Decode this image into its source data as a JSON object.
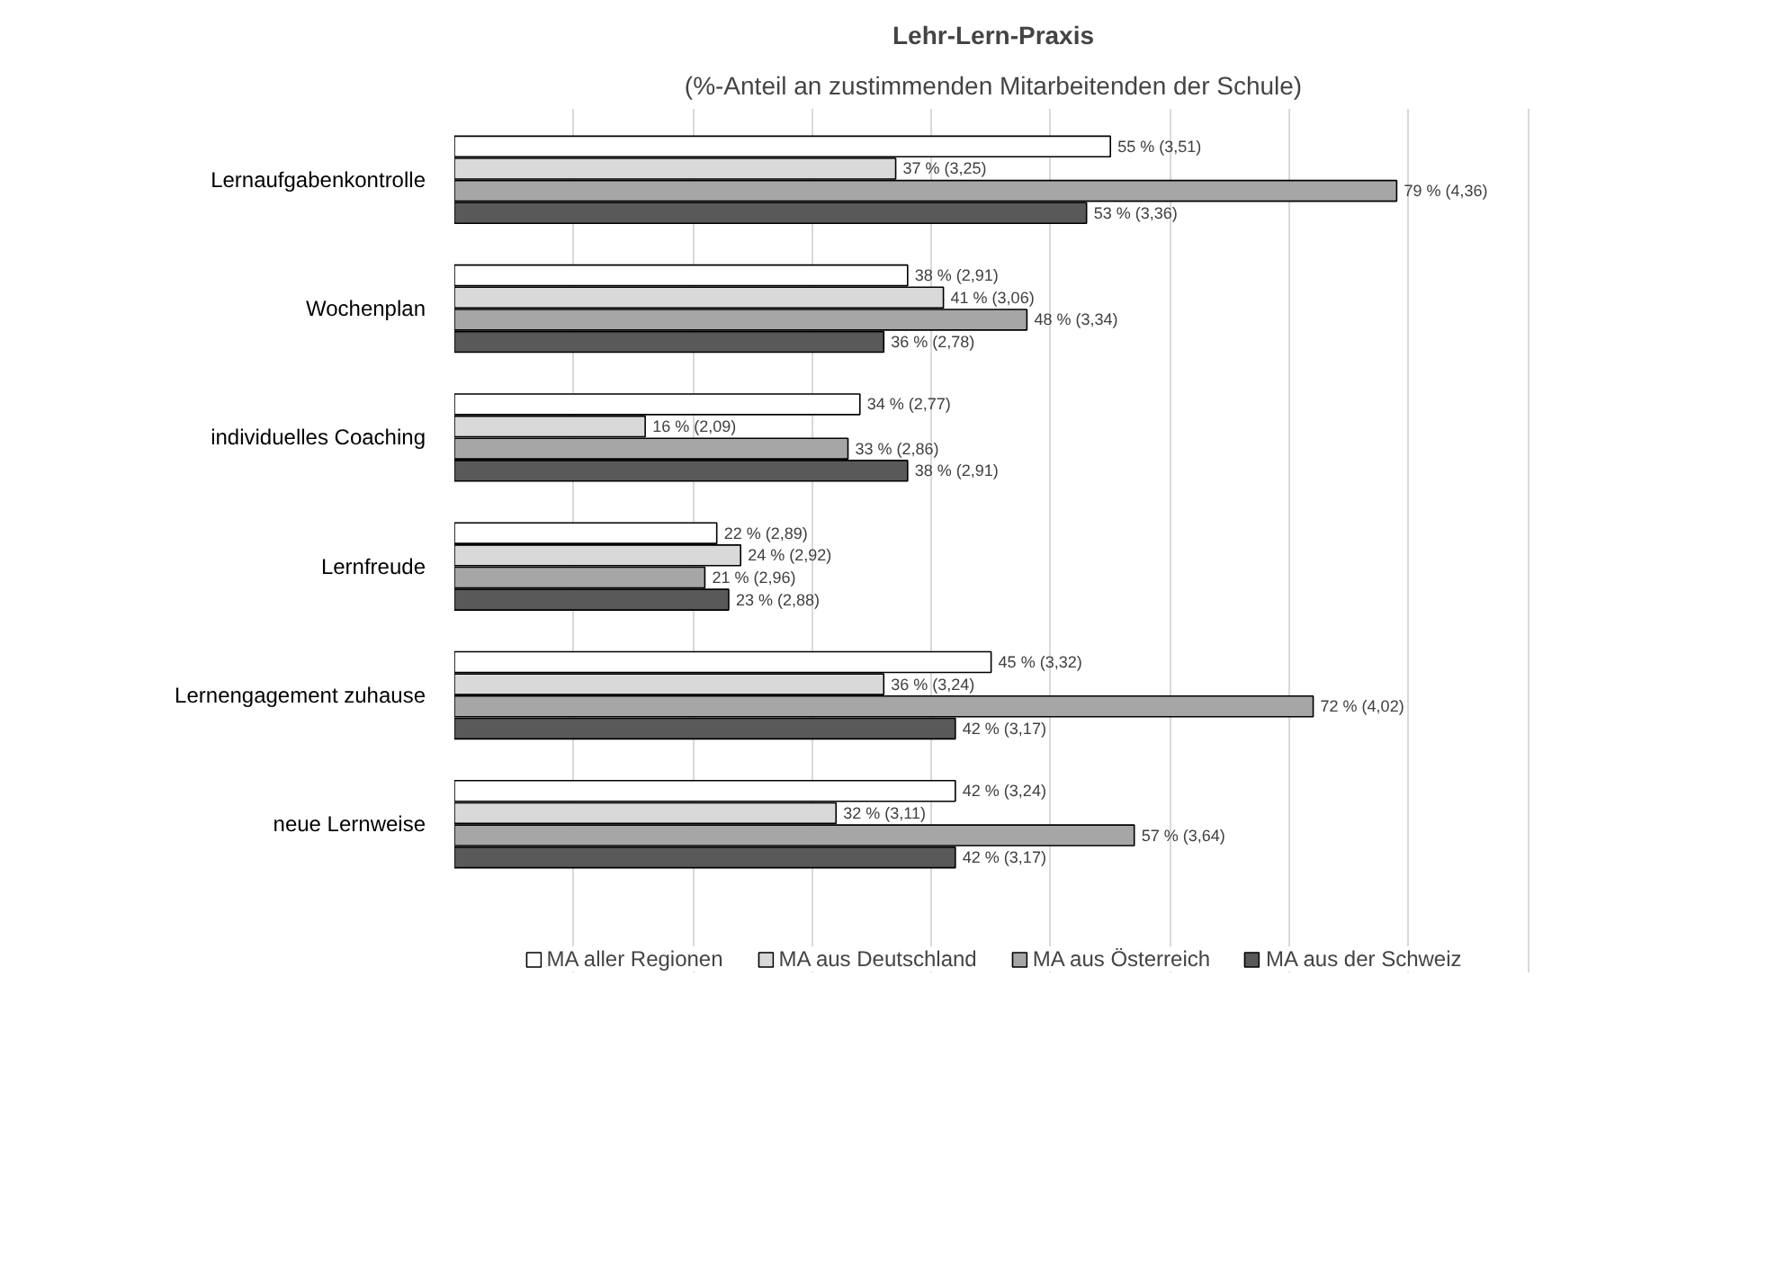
{
  "chart_data": {
    "type": "bar",
    "orientation": "horizontal",
    "title": "Lehr-Lern-Praxis",
    "subtitle": "(%-Anteil an zustimmenden Mitarbeitenden der Schule)",
    "categories": [
      "Lernaufgabenkontrolle",
      "Wochenplan",
      "individuelles Coaching",
      "Lernfreude",
      "Lernengagement zuhause",
      "neue Lernweise"
    ],
    "series": [
      {
        "name": "MA aller Regionen",
        "color": "#ffffff",
        "values": [
          55,
          38,
          34,
          22,
          45,
          42
        ],
        "value_labels": [
          "55 % (3,51)",
          "38 % (2,91)",
          "34 % (2,77)",
          "22 % (2,89)",
          "45 % (3,32)",
          "42 % (3,24)"
        ]
      },
      {
        "name": "MA aus Deutschland",
        "color": "#d9d9d9",
        "values": [
          37,
          41,
          16,
          24,
          36,
          32
        ],
        "value_labels": [
          "37 % (3,25)",
          "41 % (3,06)",
          "16 % (2,09)",
          "24 % (2,92)",
          "36 % (3,24)",
          "32 % (3,11)"
        ]
      },
      {
        "name": "MA aus Österreich",
        "color": "#a6a6a6",
        "values": [
          79,
          48,
          33,
          21,
          72,
          57
        ],
        "value_labels": [
          "79 % (4,36)",
          "48 % (3,34)",
          "33 % (2,86)",
          "21 % (2,96)",
          "72 % (4,02)",
          "57 % (3,64)"
        ]
      },
      {
        "name": "MA aus der Schweiz",
        "color": "#595959",
        "values": [
          53,
          36,
          38,
          23,
          42,
          42
        ],
        "value_labels": [
          "53 % (3,36)",
          "36 % (2,78)",
          "38 % (2,91)",
          "23 % (2,88)",
          "42 % (3,17)",
          "42 % (3,17)"
        ]
      }
    ],
    "xticks": [
      {
        "value": 10,
        "label": null
      },
      {
        "value": 20,
        "label": null
      },
      {
        "value": 30,
        "label": null
      },
      {
        "value": 40,
        "label": null
      },
      {
        "value": 50,
        "label": null
      },
      {
        "value": 60,
        "label": null
      },
      {
        "value": 70,
        "label": null
      },
      {
        "value": 80,
        "label": null
      },
      {
        "value": 90,
        "label": null
      }
    ],
    "tick_labels": "y",
    "grid": "x",
    "legend": "bottom"
  }
}
